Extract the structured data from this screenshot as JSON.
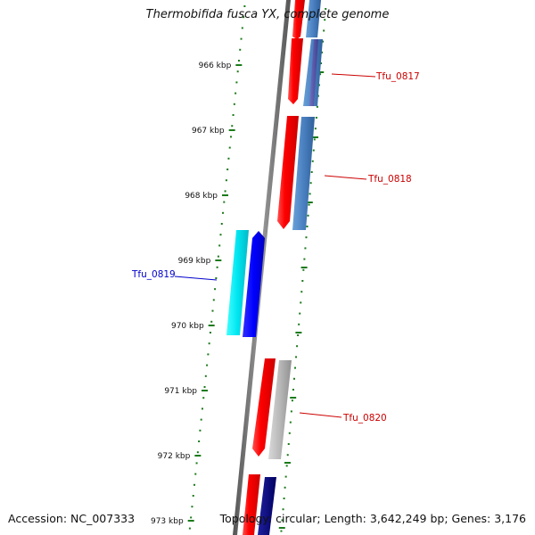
{
  "title": "Thermobifida fusca YX, complete genome",
  "footer": {
    "accession": "Accession: NC_007333",
    "topology": "Topology: circular; Length: 3,642,249 bp; Genes: 3,176"
  },
  "map": {
    "position_ticks": [
      "966 kbp",
      "967 kbp",
      "968 kbp",
      "969 kbp",
      "970 kbp",
      "971 kbp",
      "972 kbp",
      "973 kbp"
    ],
    "genes": [
      {
        "name": "Tfu_0817",
        "strand": "reverse",
        "color": "#ff0000",
        "feature_color": "#6aa0d8",
        "label_color": "#cc0000"
      },
      {
        "name": "Tfu_0818",
        "strand": "reverse",
        "color": "#ff0000",
        "feature_color": "#4a80c0",
        "label_color": "#cc0000"
      },
      {
        "name": "Tfu_0819",
        "strand": "forward",
        "color": "#0000ff",
        "feature_color": "#00e5f0",
        "label_color": "#0000cc"
      },
      {
        "name": "Tfu_0820",
        "strand": "reverse",
        "color": "#ff0000",
        "feature_color": "#b8b8b8",
        "label_color": "#cc0000"
      }
    ],
    "colors": {
      "backbone": "#888888",
      "tick": "#1a7a1a",
      "partial_gene_bottom": "#ff0000",
      "partial_feature_bottom": "#000080"
    }
  }
}
